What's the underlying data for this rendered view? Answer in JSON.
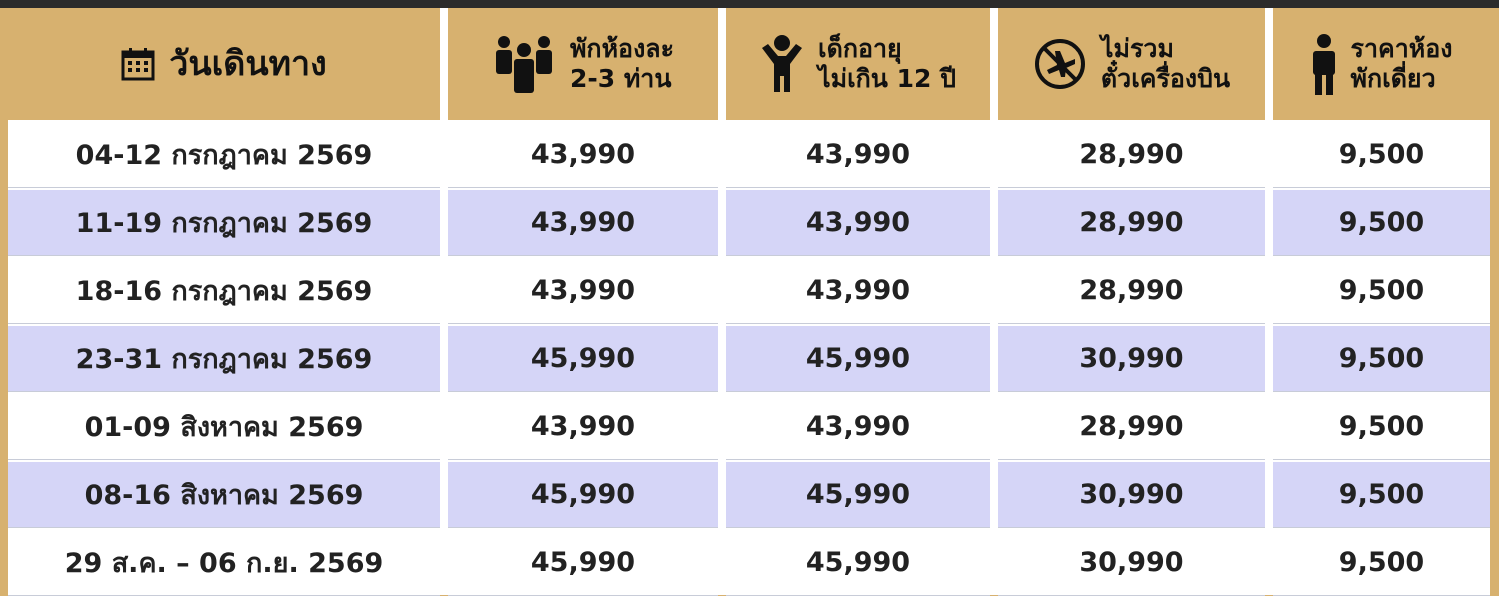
{
  "header": {
    "columns": [
      {
        "lines": [
          "วันเดินทาง"
        ]
      },
      {
        "lines": [
          "พักห้องละ",
          "2-3 ท่าน"
        ]
      },
      {
        "lines": [
          "เด็กอายุ",
          "ไม่เกิน 12 ปี"
        ]
      },
      {
        "lines": [
          "ไม่รวม",
          "ตั๋วเครื่องบิน"
        ]
      },
      {
        "lines": [
          "ราคาห้อง",
          "พักเดี่ยว"
        ]
      }
    ]
  },
  "table": {
    "rows": [
      [
        "04-12 กรกฎาคม 2569",
        "43,990",
        "43,990",
        "28,990",
        "9,500"
      ],
      [
        "11-19 กรกฎาคม 2569",
        "43,990",
        "43,990",
        "28,990",
        "9,500"
      ],
      [
        "18-16 กรกฎาคม 2569",
        "43,990",
        "43,990",
        "28,990",
        "9,500"
      ],
      [
        "23-31 กรกฎาคม 2569",
        "45,990",
        "45,990",
        "30,990",
        "9,500"
      ],
      [
        "01-09 สิงหาคม 2569",
        "43,990",
        "43,990",
        "28,990",
        "9,500"
      ],
      [
        "08-16 สิงหาคม 2569",
        "45,990",
        "45,990",
        "30,990",
        "9,500"
      ],
      [
        "29 ส.ค. – 06 ก.ย. 2569",
        "45,990",
        "45,990",
        "30,990",
        "9,500"
      ]
    ]
  }
}
